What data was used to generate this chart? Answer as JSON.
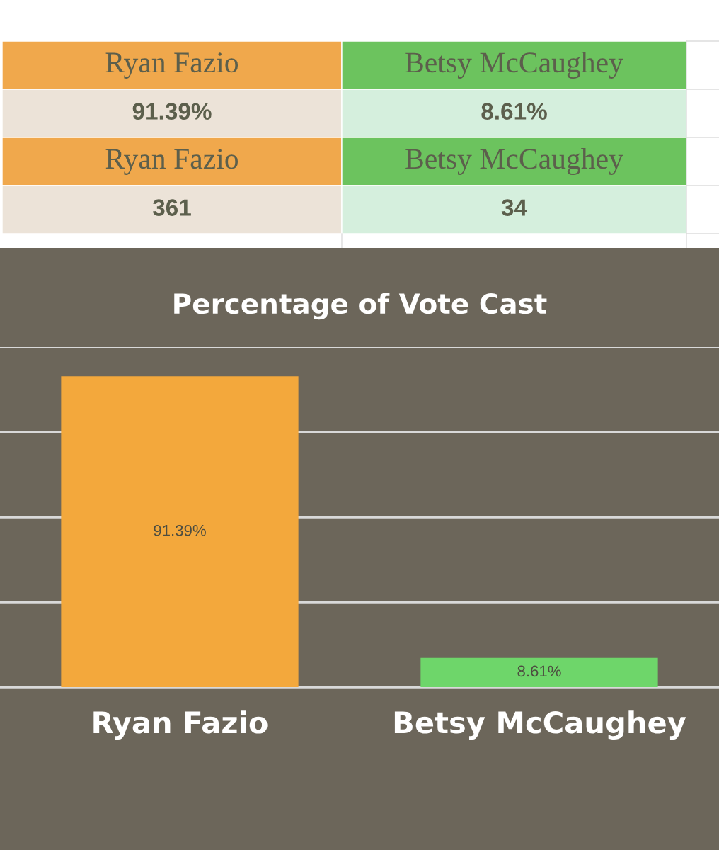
{
  "chart_data": [
    {
      "type": "other",
      "annotations": [
        "Ryan Fazio",
        "Betsy McCaughey",
        "91.39%",
        "8.61%",
        "Ryan Fazio",
        "Betsy McCaughey",
        "361",
        "34"
      ]
    },
    {
      "type": "bar",
      "title": "Percentage of Vote Cast",
      "categories": [
        "Ryan Fazio",
        "Betsy McCaughey"
      ],
      "values": [
        91.39,
        8.61
      ],
      "colors": [
        "#f3a83c",
        "#6ed66a"
      ],
      "value_labels": [
        "91.39%",
        "8.61%"
      ],
      "ylim": [
        0,
        100
      ],
      "yticks": [
        {
          "value": 0,
          "label": null
        },
        {
          "value": 25,
          "label": null
        },
        {
          "value": 50,
          "label": null
        },
        {
          "value": 75,
          "label": null
        },
        {
          "value": 100,
          "label": null
        }
      ],
      "grid": "y",
      "tick_labels": "x"
    }
  ]
}
